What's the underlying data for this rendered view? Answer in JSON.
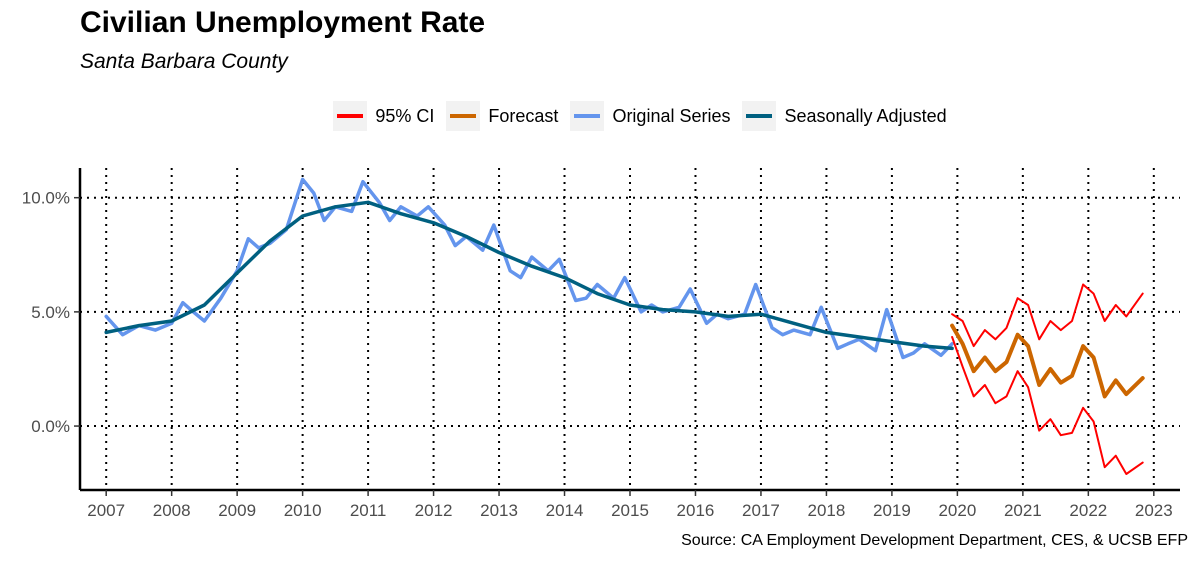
{
  "chart_data": {
    "type": "line",
    "title": "Civilian Unemployment Rate",
    "subtitle": "Santa Barbara County",
    "source": "Source: CA Employment Development Department, CES, & UCSB EFP",
    "xlim": [
      2006.6,
      2023.4
    ],
    "ylim": [
      -2.8,
      11.3
    ],
    "x_ticks": [
      2007,
      2008,
      2009,
      2010,
      2011,
      2012,
      2013,
      2014,
      2015,
      2016,
      2017,
      2018,
      2019,
      2020,
      2021,
      2022,
      2023
    ],
    "x_tick_labels": [
      "2007",
      "2008",
      "2009",
      "2010",
      "2011",
      "2012",
      "2013",
      "2014",
      "2015",
      "2016",
      "2017",
      "2018",
      "2019",
      "2020",
      "2021",
      "2022",
      "2023"
    ],
    "y_ticks": [
      0,
      5,
      10
    ],
    "y_tick_labels": [
      "0.0%",
      "5.0%",
      "10.0%"
    ],
    "grid": "dotted",
    "legend_position": "top",
    "legend": [
      {
        "label": "95% CI",
        "color": "#ff0000"
      },
      {
        "label": "Forecast",
        "color": "#cc6600"
      },
      {
        "label": "Original Series",
        "color": "#6495ed"
      },
      {
        "label": "Seasonally Adjusted",
        "color": "#006080"
      }
    ],
    "series": [
      {
        "name": "Original Series",
        "color": "#6495ed",
        "points": [
          [
            2007.0,
            4.8
          ],
          [
            2007.25,
            4.0
          ],
          [
            2007.5,
            4.4
          ],
          [
            2007.75,
            4.2
          ],
          [
            2008.0,
            4.5
          ],
          [
            2008.17,
            5.4
          ],
          [
            2008.33,
            5.0
          ],
          [
            2008.5,
            4.6
          ],
          [
            2008.75,
            5.6
          ],
          [
            2009.0,
            6.8
          ],
          [
            2009.17,
            8.2
          ],
          [
            2009.33,
            7.8
          ],
          [
            2009.5,
            8.0
          ],
          [
            2009.75,
            8.6
          ],
          [
            2010.0,
            10.8
          ],
          [
            2010.17,
            10.2
          ],
          [
            2010.33,
            9.0
          ],
          [
            2010.5,
            9.6
          ],
          [
            2010.75,
            9.4
          ],
          [
            2010.92,
            10.7
          ],
          [
            2011.17,
            9.8
          ],
          [
            2011.33,
            9.0
          ],
          [
            2011.5,
            9.6
          ],
          [
            2011.75,
            9.2
          ],
          [
            2011.92,
            9.6
          ],
          [
            2012.17,
            8.8
          ],
          [
            2012.33,
            7.9
          ],
          [
            2012.5,
            8.3
          ],
          [
            2012.75,
            7.7
          ],
          [
            2012.92,
            8.8
          ],
          [
            2013.17,
            6.8
          ],
          [
            2013.33,
            6.5
          ],
          [
            2013.5,
            7.4
          ],
          [
            2013.75,
            6.8
          ],
          [
            2013.92,
            7.3
          ],
          [
            2014.17,
            5.5
          ],
          [
            2014.33,
            5.6
          ],
          [
            2014.5,
            6.2
          ],
          [
            2014.75,
            5.6
          ],
          [
            2014.92,
            6.5
          ],
          [
            2015.17,
            5.0
          ],
          [
            2015.33,
            5.3
          ],
          [
            2015.5,
            5.0
          ],
          [
            2015.75,
            5.2
          ],
          [
            2015.92,
            6.0
          ],
          [
            2016.17,
            4.5
          ],
          [
            2016.33,
            4.9
          ],
          [
            2016.5,
            4.7
          ],
          [
            2016.75,
            4.9
          ],
          [
            2016.92,
            6.2
          ],
          [
            2017.17,
            4.3
          ],
          [
            2017.33,
            4.0
          ],
          [
            2017.5,
            4.2
          ],
          [
            2017.75,
            4.0
          ],
          [
            2017.92,
            5.2
          ],
          [
            2018.17,
            3.4
          ],
          [
            2018.33,
            3.6
          ],
          [
            2018.5,
            3.8
          ],
          [
            2018.75,
            3.3
          ],
          [
            2018.92,
            5.1
          ],
          [
            2019.17,
            3.0
          ],
          [
            2019.33,
            3.2
          ],
          [
            2019.5,
            3.6
          ],
          [
            2019.75,
            3.1
          ],
          [
            2019.92,
            3.6
          ]
        ]
      },
      {
        "name": "Seasonally Adjusted",
        "color": "#006080",
        "points": [
          [
            2007.0,
            4.1
          ],
          [
            2007.5,
            4.4
          ],
          [
            2008.0,
            4.6
          ],
          [
            2008.5,
            5.3
          ],
          [
            2009.0,
            6.7
          ],
          [
            2009.5,
            8.1
          ],
          [
            2010.0,
            9.2
          ],
          [
            2010.5,
            9.6
          ],
          [
            2011.0,
            9.8
          ],
          [
            2011.5,
            9.3
          ],
          [
            2012.0,
            8.9
          ],
          [
            2012.5,
            8.3
          ],
          [
            2013.0,
            7.6
          ],
          [
            2013.5,
            7.0
          ],
          [
            2014.0,
            6.5
          ],
          [
            2014.5,
            5.8
          ],
          [
            2015.0,
            5.3
          ],
          [
            2015.5,
            5.1
          ],
          [
            2016.0,
            5.0
          ],
          [
            2016.5,
            4.8
          ],
          [
            2017.0,
            4.9
          ],
          [
            2017.5,
            4.5
          ],
          [
            2018.0,
            4.1
          ],
          [
            2018.5,
            3.9
          ],
          [
            2019.0,
            3.7
          ],
          [
            2019.5,
            3.5
          ],
          [
            2019.92,
            3.4
          ]
        ]
      },
      {
        "name": "Forecast",
        "color": "#cc6600",
        "points": [
          [
            2019.92,
            4.4
          ],
          [
            2020.08,
            3.6
          ],
          [
            2020.25,
            2.4
          ],
          [
            2020.42,
            3.0
          ],
          [
            2020.58,
            2.4
          ],
          [
            2020.75,
            2.8
          ],
          [
            2020.92,
            4.0
          ],
          [
            2021.08,
            3.5
          ],
          [
            2021.25,
            1.8
          ],
          [
            2021.42,
            2.5
          ],
          [
            2021.58,
            1.9
          ],
          [
            2021.75,
            2.2
          ],
          [
            2021.92,
            3.5
          ],
          [
            2022.08,
            3.0
          ],
          [
            2022.25,
            1.3
          ],
          [
            2022.42,
            2.0
          ],
          [
            2022.58,
            1.4
          ],
          [
            2022.83,
            2.1
          ]
        ]
      },
      {
        "name": "95% CI upper",
        "color": "#ff0000",
        "points": [
          [
            2019.92,
            4.9
          ],
          [
            2020.08,
            4.6
          ],
          [
            2020.25,
            3.5
          ],
          [
            2020.42,
            4.2
          ],
          [
            2020.58,
            3.8
          ],
          [
            2020.75,
            4.3
          ],
          [
            2020.92,
            5.6
          ],
          [
            2021.08,
            5.3
          ],
          [
            2021.25,
            3.8
          ],
          [
            2021.42,
            4.6
          ],
          [
            2021.58,
            4.2
          ],
          [
            2021.75,
            4.6
          ],
          [
            2021.92,
            6.2
          ],
          [
            2022.08,
            5.8
          ],
          [
            2022.25,
            4.6
          ],
          [
            2022.42,
            5.3
          ],
          [
            2022.58,
            4.8
          ],
          [
            2022.83,
            5.8
          ]
        ]
      },
      {
        "name": "95% CI lower",
        "color": "#ff0000",
        "points": [
          [
            2019.92,
            3.9
          ],
          [
            2020.08,
            2.6
          ],
          [
            2020.25,
            1.3
          ],
          [
            2020.42,
            1.8
          ],
          [
            2020.58,
            1.0
          ],
          [
            2020.75,
            1.3
          ],
          [
            2020.92,
            2.4
          ],
          [
            2021.08,
            1.7
          ],
          [
            2021.25,
            -0.2
          ],
          [
            2021.42,
            0.3
          ],
          [
            2021.58,
            -0.4
          ],
          [
            2021.75,
            -0.3
          ],
          [
            2021.92,
            0.8
          ],
          [
            2022.08,
            0.2
          ],
          [
            2022.25,
            -1.8
          ],
          [
            2022.42,
            -1.3
          ],
          [
            2022.58,
            -2.1
          ],
          [
            2022.83,
            -1.6
          ]
        ]
      }
    ]
  }
}
